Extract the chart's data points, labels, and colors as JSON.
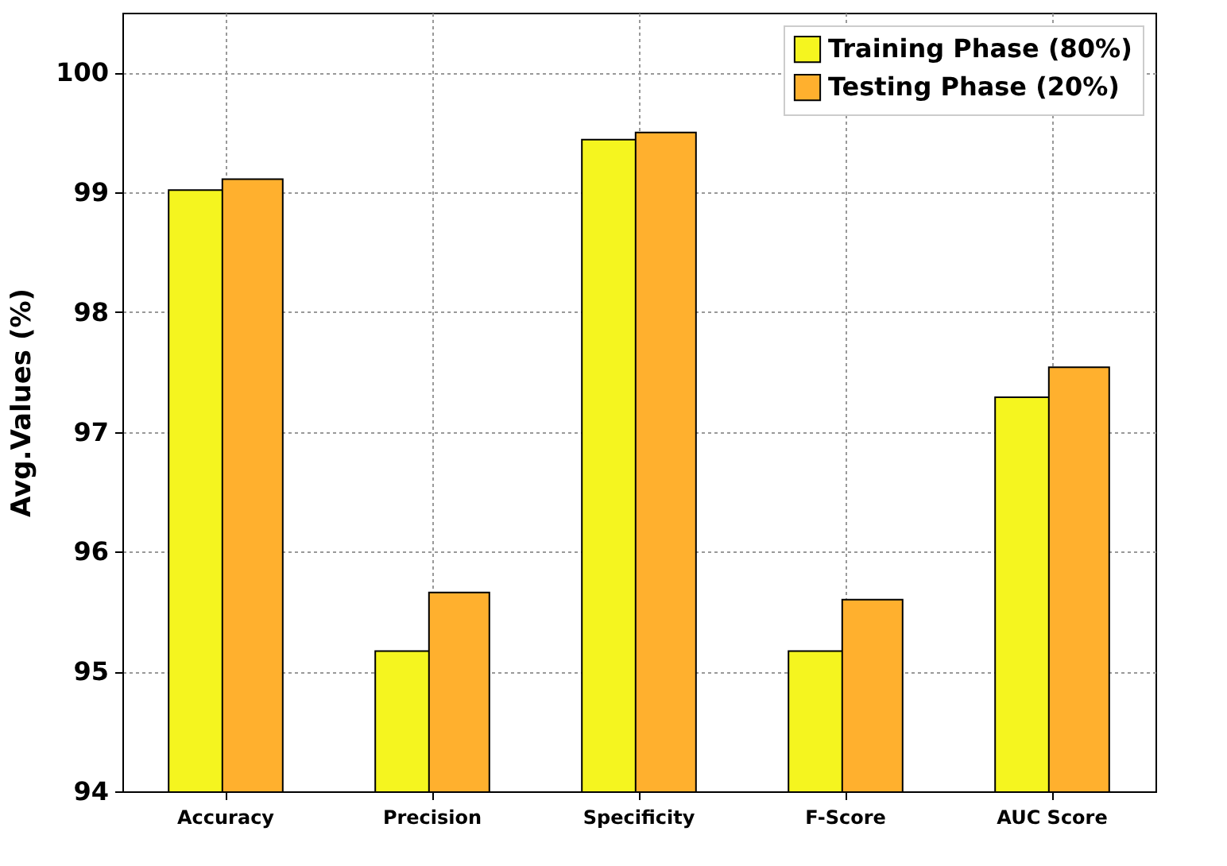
{
  "chart_data": {
    "type": "bar",
    "ylabel": "Avg.Values (%)",
    "categories": [
      "Accuracy",
      "Precision",
      "Specificity",
      "F-Score",
      "AUC Score"
    ],
    "series": [
      {
        "name": "Training Phase (80%)",
        "color": "#f5f51f",
        "values": [
          99.02,
          95.17,
          99.44,
          95.17,
          97.29
        ]
      },
      {
        "name": "Testing Phase (20%)",
        "color": "#ffb02e",
        "values": [
          99.11,
          95.66,
          99.5,
          95.6,
          97.54
        ]
      }
    ],
    "ylim": [
      94,
      100.5
    ],
    "yticks": [
      94,
      95,
      96,
      97,
      98,
      99,
      100
    ],
    "grid": true,
    "legend": "top right"
  }
}
